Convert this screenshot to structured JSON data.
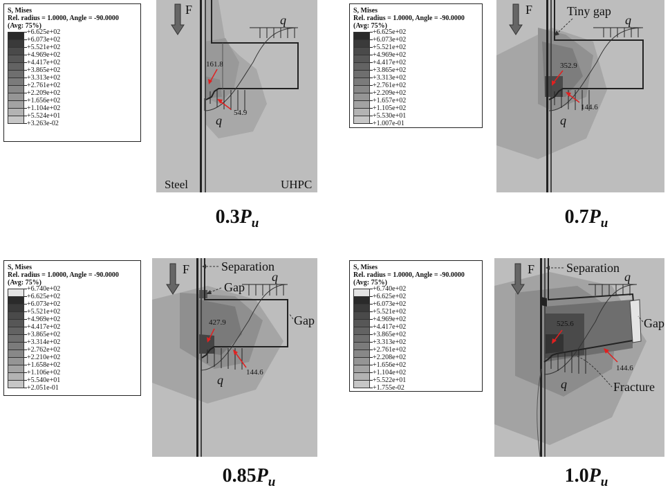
{
  "panels": [
    {
      "id": "p03",
      "legend_title": "S, Mises",
      "legend_line2": "Rel. radius = 1.0000, Angle = -90.0000",
      "legend_line3": "(Avg: 75%)",
      "legend_values": [
        "+6.625e+02",
        "+6.073e+02",
        "+5.521e+02",
        "+4.969e+02",
        "+4.417e+02",
        "+3.865e+02",
        "+3.313e+02",
        "+2.761e+02",
        "+2.209e+02",
        "+1.656e+02",
        "+1.104e+02",
        "+5.524e+01",
        "+3.263e-02"
      ],
      "caption_main": "0.3",
      "caption_p": "P",
      "caption_sub": "u",
      "force_label": "F",
      "q_top": "q",
      "q_bottom": "q",
      "value_upper": "161.8",
      "value_lower": "54.9",
      "label_steel": "Steel",
      "label_uhpc": "UHPC"
    },
    {
      "id": "p07",
      "legend_title": "S, Mises",
      "legend_line2": "Rel. radius = 1.0000, Angle = -90.0000",
      "legend_line3": "(Avg: 75%)",
      "legend_values": [
        "+6.625e+02",
        "+6.073e+02",
        "+5.521e+02",
        "+4.969e+02",
        "+4.417e+02",
        "+3.865e+02",
        "+3.313e+02",
        "+2.761e+02",
        "+2.209e+02",
        "+1.657e+02",
        "+1.105e+02",
        "+5.530e+01",
        "+1.007e-01"
      ],
      "caption_main": "0.7",
      "caption_p": "P",
      "caption_sub": "u",
      "force_label": "F",
      "q_top": "q",
      "q_bottom": "q",
      "value_upper": "352.9",
      "value_lower": "144.6",
      "label_tiny_gap": "Tiny gap"
    },
    {
      "id": "p085",
      "legend_title": "S, Mises",
      "legend_line2": "Rel. radius = 1.0000, Angle = -90.0000",
      "legend_line3": "(Avg: 75%)",
      "legend_values": [
        "+6.740e+02",
        "+6.625e+02",
        "+6.073e+02",
        "+5.521e+02",
        "+4.969e+02",
        "+4.417e+02",
        "+3.865e+02",
        "+3.314e+02",
        "+2.762e+02",
        "+2.210e+02",
        "+1.658e+02",
        "+1.106e+02",
        "+5.540e+01",
        "+2.051e-01"
      ],
      "caption_main": "0.85",
      "caption_p": "P",
      "caption_sub": "u",
      "force_label": "F",
      "q_top": "q",
      "q_bottom": "q",
      "value_upper": "427.9",
      "value_lower": "144.6",
      "label_separation": "Separation",
      "label_gap_left": "Gap",
      "label_gap_right": "Gap"
    },
    {
      "id": "p10",
      "legend_title": "S, Mises",
      "legend_line2": "Rel. radius = 1.0000, Angle = -90.0000",
      "legend_line3": "(Avg: 75%)",
      "legend_values": [
        "+6.740e+02",
        "+6.625e+02",
        "+6.073e+02",
        "+5.521e+02",
        "+4.969e+02",
        "+4.417e+02",
        "+3.865e+02",
        "+3.313e+02",
        "+2.761e+02",
        "+2.208e+02",
        "+1.656e+02",
        "+1.104e+02",
        "+5.522e+01",
        "+1.755e-02"
      ],
      "caption_main": "1.0",
      "caption_p": "P",
      "caption_sub": "u",
      "force_label": "F",
      "q_top": "q",
      "q_bottom": "q",
      "value_upper": "525.6",
      "value_lower": "144.6",
      "label_separation": "Separation",
      "label_gap": "Gap",
      "label_fracture": "Fracture"
    }
  ],
  "colors": {
    "background_gray": "#bdbdbd",
    "legend_grays": [
      "#e4e4e4",
      "#2a2a2a",
      "#3a3a3a",
      "#4a4a4a",
      "#575757",
      "#636363",
      "#6f6f6f",
      "#7b7b7b",
      "#888888",
      "#959595",
      "#a3a3a3",
      "#b3b3b3",
      "#c6c6c6",
      "#dcdcdc"
    ],
    "arrow_red": "#e02020"
  }
}
